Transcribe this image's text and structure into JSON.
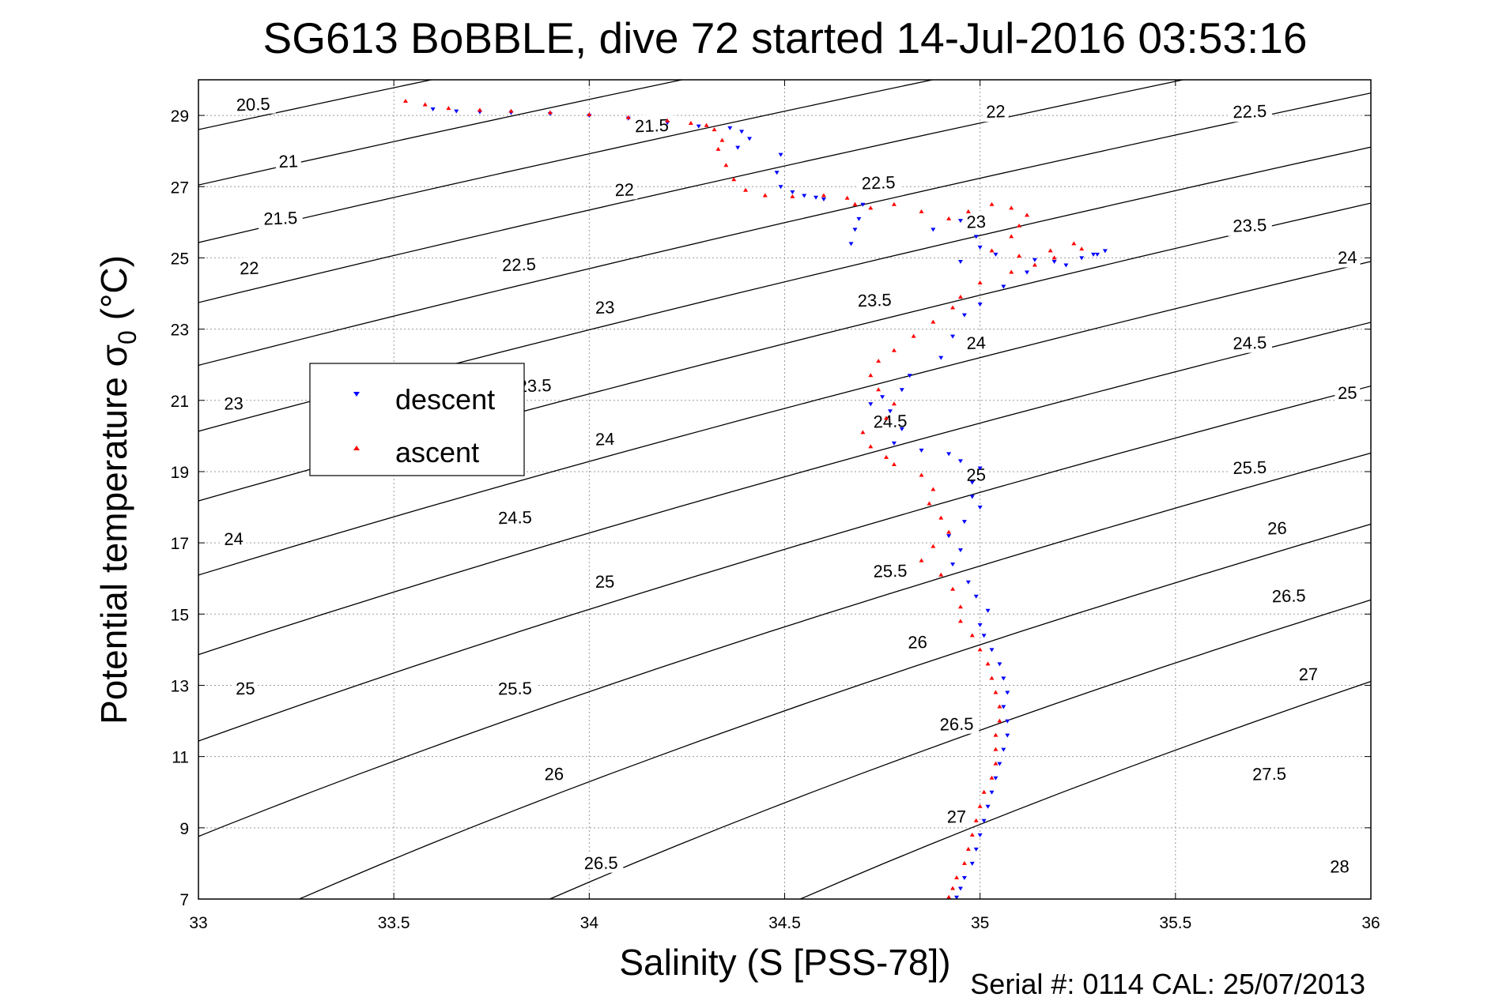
{
  "chart_data": {
    "type": "scatter",
    "title": "SG613 BoBBLE, dive 72 started 14-Jul-2016 03:53:16",
    "xlabel": "Salinity (S [PSS-78])",
    "ylabel": "Potential temperature σ",
    "ylabel_subscript": "0",
    "ylabel_units": " (°C)",
    "footer": "Serial #: 0114  CAL: 25/07/2013",
    "xlim": [
      33,
      36
    ],
    "ylim": [
      7,
      30
    ],
    "x_ticks": [
      33,
      33.5,
      34,
      34.5,
      35,
      35.5,
      36
    ],
    "x_tick_labels": [
      "33",
      "33.5",
      "34",
      "34.5",
      "35",
      "35.5",
      "36"
    ],
    "y_ticks": [
      7,
      9,
      11,
      13,
      15,
      17,
      19,
      21,
      23,
      25,
      27,
      29
    ],
    "y_tick_labels": [
      "7",
      "9",
      "11",
      "13",
      "15",
      "17",
      "19",
      "21",
      "23",
      "25",
      "27",
      "29"
    ],
    "grid": true,
    "legend": {
      "placement": "left-middle",
      "entries": [
        {
          "label": "descent",
          "color": "#0000ff",
          "marker": "triangle-down"
        },
        {
          "label": "ascent",
          "color": "#ff0000",
          "marker": "triangle-up"
        }
      ]
    },
    "density_contours": {
      "levels": [
        20.5,
        21,
        21.5,
        22,
        22.5,
        23,
        23.5,
        24,
        24.5,
        25,
        25.5,
        26,
        26.5,
        27,
        27.5,
        28
      ],
      "labels": [
        {
          "text": "20.5",
          "s": 33.14,
          "t": 29.3
        },
        {
          "text": "21",
          "s": 33.23,
          "t": 27.7
        },
        {
          "text": "21.5",
          "s": 33.21,
          "t": 26.1
        },
        {
          "text": "22",
          "s": 33.13,
          "t": 24.7
        },
        {
          "text": "23",
          "s": 33.09,
          "t": 20.9
        },
        {
          "text": "24",
          "s": 33.09,
          "t": 17.1
        },
        {
          "text": "25",
          "s": 33.12,
          "t": 12.9
        },
        {
          "text": "21.5",
          "s": 34.16,
          "t": 28.7
        },
        {
          "text": "22",
          "s": 34.09,
          "t": 26.9
        },
        {
          "text": "22.5",
          "s": 33.82,
          "t": 24.8
        },
        {
          "text": "23",
          "s": 34.04,
          "t": 23.6
        },
        {
          "text": "23.5",
          "s": 33.86,
          "t": 21.4
        },
        {
          "text": "24",
          "s": 34.04,
          "t": 19.9
        },
        {
          "text": "24.5",
          "s": 33.81,
          "t": 17.7
        },
        {
          "text": "25",
          "s": 34.04,
          "t": 15.9
        },
        {
          "text": "25.5",
          "s": 33.81,
          "t": 12.9
        },
        {
          "text": "26",
          "s": 33.91,
          "t": 10.5
        },
        {
          "text": "26.5",
          "s": 34.03,
          "t": 8.0
        },
        {
          "text": "22.5",
          "s": 34.74,
          "t": 27.1
        },
        {
          "text": "23",
          "s": 34.99,
          "t": 26.0
        },
        {
          "text": "23.5",
          "s": 34.73,
          "t": 23.8
        },
        {
          "text": "24",
          "s": 34.99,
          "t": 22.6
        },
        {
          "text": "24.5",
          "s": 34.77,
          "t": 20.4
        },
        {
          "text": "25",
          "s": 34.99,
          "t": 18.9
        },
        {
          "text": "25.5",
          "s": 34.77,
          "t": 16.2
        },
        {
          "text": "26",
          "s": 34.84,
          "t": 14.2
        },
        {
          "text": "26.5",
          "s": 34.94,
          "t": 11.9
        },
        {
          "text": "27",
          "s": 34.94,
          "t": 9.3
        },
        {
          "text": "22",
          "s": 35.04,
          "t": 29.1
        },
        {
          "text": "22.5",
          "s": 35.69,
          "t": 29.1
        },
        {
          "text": "23.5",
          "s": 35.69,
          "t": 25.9
        },
        {
          "text": "24",
          "s": 35.94,
          "t": 25.0
        },
        {
          "text": "24.5",
          "s": 35.69,
          "t": 22.6
        },
        {
          "text": "25",
          "s": 35.94,
          "t": 21.2
        },
        {
          "text": "25.5",
          "s": 35.69,
          "t": 19.1
        },
        {
          "text": "26",
          "s": 35.76,
          "t": 17.4
        },
        {
          "text": "26.5",
          "s": 35.79,
          "t": 15.5
        },
        {
          "text": "27",
          "s": 35.84,
          "t": 13.3
        },
        {
          "text": "27.5",
          "s": 35.74,
          "t": 10.5
        },
        {
          "text": "28",
          "s": 35.92,
          "t": 7.9
        }
      ]
    },
    "series": [
      {
        "name": "descent",
        "color": "#0000ff",
        "marker": "triangle-down",
        "points": [
          [
            33.6,
            29.18
          ],
          [
            33.66,
            29.12
          ],
          [
            33.72,
            29.1
          ],
          [
            33.8,
            29.08
          ],
          [
            33.9,
            29.05
          ],
          [
            34.0,
            29.0
          ],
          [
            34.1,
            28.92
          ],
          [
            34.2,
            28.8
          ],
          [
            34.28,
            28.7
          ],
          [
            34.36,
            28.65
          ],
          [
            34.39,
            28.55
          ],
          [
            34.41,
            28.35
          ],
          [
            34.38,
            28.1
          ],
          [
            34.49,
            27.9
          ],
          [
            34.48,
            27.4
          ],
          [
            34.49,
            27.0
          ],
          [
            34.52,
            26.85
          ],
          [
            34.55,
            26.75
          ],
          [
            34.58,
            26.7
          ],
          [
            34.6,
            26.65
          ],
          [
            34.7,
            26.5
          ],
          [
            34.69,
            26.1
          ],
          [
            34.68,
            25.8
          ],
          [
            34.67,
            25.4
          ],
          [
            34.88,
            25.8
          ],
          [
            34.95,
            26.05
          ],
          [
            34.99,
            25.6
          ],
          [
            35.0,
            25.3
          ],
          [
            35.04,
            25.1
          ],
          [
            34.95,
            24.9
          ],
          [
            35.14,
            24.95
          ],
          [
            35.22,
            24.8
          ],
          [
            35.26,
            25.0
          ],
          [
            35.3,
            25.1
          ],
          [
            35.32,
            25.2
          ],
          [
            35.29,
            25.1
          ],
          [
            35.19,
            24.9
          ],
          [
            35.12,
            24.6
          ],
          [
            35.06,
            24.2
          ],
          [
            35.0,
            23.7
          ],
          [
            34.96,
            23.4
          ],
          [
            34.93,
            22.8
          ],
          [
            34.9,
            22.2
          ],
          [
            34.82,
            21.7
          ],
          [
            34.8,
            21.3
          ],
          [
            34.75,
            21.1
          ],
          [
            34.72,
            20.9
          ],
          [
            34.77,
            20.7
          ],
          [
            34.8,
            20.2
          ],
          [
            34.78,
            19.8
          ],
          [
            34.85,
            19.6
          ],
          [
            34.92,
            19.5
          ],
          [
            34.95,
            19.3
          ],
          [
            35.0,
            19.1
          ],
          [
            34.98,
            18.7
          ],
          [
            34.98,
            18.3
          ],
          [
            35.0,
            18.0
          ],
          [
            34.96,
            17.6
          ],
          [
            34.92,
            17.2
          ],
          [
            34.95,
            16.8
          ],
          [
            34.93,
            16.4
          ],
          [
            34.97,
            15.9
          ],
          [
            34.99,
            15.5
          ],
          [
            35.02,
            15.1
          ],
          [
            35.0,
            14.7
          ],
          [
            35.01,
            14.4
          ],
          [
            35.03,
            14.0
          ],
          [
            35.05,
            13.6
          ],
          [
            35.06,
            13.2
          ],
          [
            35.07,
            12.8
          ],
          [
            35.06,
            12.4
          ],
          [
            35.07,
            12.0
          ],
          [
            35.07,
            11.6
          ],
          [
            35.06,
            11.2
          ],
          [
            35.05,
            10.8
          ],
          [
            35.04,
            10.4
          ],
          [
            35.03,
            10.0
          ],
          [
            35.02,
            9.6
          ],
          [
            35.01,
            9.2
          ],
          [
            35.0,
            8.8
          ],
          [
            34.99,
            8.4
          ],
          [
            34.98,
            8.0
          ],
          [
            34.96,
            7.6
          ],
          [
            34.95,
            7.3
          ],
          [
            34.94,
            7.05
          ]
        ]
      },
      {
        "name": "ascent",
        "color": "#ff0000",
        "marker": "triangle-up",
        "points": [
          [
            33.53,
            29.4
          ],
          [
            33.58,
            29.3
          ],
          [
            33.64,
            29.2
          ],
          [
            33.72,
            29.15
          ],
          [
            33.8,
            29.12
          ],
          [
            33.9,
            29.08
          ],
          [
            34.0,
            29.02
          ],
          [
            34.1,
            28.94
          ],
          [
            34.2,
            28.85
          ],
          [
            34.26,
            28.78
          ],
          [
            34.3,
            28.72
          ],
          [
            34.32,
            28.6
          ],
          [
            34.34,
            28.3
          ],
          [
            34.33,
            28.05
          ],
          [
            34.35,
            27.6
          ],
          [
            34.37,
            27.2
          ],
          [
            34.4,
            26.9
          ],
          [
            34.45,
            26.75
          ],
          [
            34.52,
            26.72
          ],
          [
            34.6,
            26.75
          ],
          [
            34.66,
            26.68
          ],
          [
            34.68,
            26.5
          ],
          [
            34.72,
            26.4
          ],
          [
            34.78,
            26.5
          ],
          [
            34.85,
            26.3
          ],
          [
            34.92,
            26.1
          ],
          [
            34.97,
            26.3
          ],
          [
            35.03,
            26.5
          ],
          [
            35.08,
            26.4
          ],
          [
            35.12,
            26.2
          ],
          [
            35.1,
            25.9
          ],
          [
            35.08,
            25.6
          ],
          [
            35.03,
            25.2
          ],
          [
            35.1,
            25.05
          ],
          [
            35.18,
            25.2
          ],
          [
            35.24,
            25.4
          ],
          [
            35.26,
            25.25
          ],
          [
            35.19,
            25.0
          ],
          [
            35.14,
            24.8
          ],
          [
            35.08,
            24.6
          ],
          [
            35.0,
            24.3
          ],
          [
            34.95,
            23.9
          ],
          [
            34.93,
            23.6
          ],
          [
            34.88,
            23.2
          ],
          [
            34.83,
            22.8
          ],
          [
            34.78,
            22.4
          ],
          [
            34.74,
            22.1
          ],
          [
            34.72,
            21.7
          ],
          [
            34.74,
            21.3
          ],
          [
            34.78,
            20.9
          ],
          [
            34.76,
            20.5
          ],
          [
            34.7,
            20.1
          ],
          [
            34.72,
            19.7
          ],
          [
            34.76,
            19.4
          ],
          [
            34.78,
            19.2
          ],
          [
            34.85,
            18.9
          ],
          [
            34.88,
            18.5
          ],
          [
            34.87,
            18.1
          ],
          [
            34.9,
            17.7
          ],
          [
            34.92,
            17.3
          ],
          [
            34.88,
            16.9
          ],
          [
            34.85,
            16.5
          ],
          [
            34.9,
            16.1
          ],
          [
            34.93,
            15.7
          ],
          [
            34.95,
            15.2
          ],
          [
            34.95,
            14.8
          ],
          [
            34.98,
            14.4
          ],
          [
            35.0,
            14.0
          ],
          [
            35.02,
            13.6
          ],
          [
            35.03,
            13.2
          ],
          [
            35.04,
            12.8
          ],
          [
            35.05,
            12.4
          ],
          [
            35.05,
            12.0
          ],
          [
            35.04,
            11.6
          ],
          [
            35.04,
            11.2
          ],
          [
            35.04,
            10.8
          ],
          [
            35.03,
            10.4
          ],
          [
            35.01,
            10.0
          ],
          [
            35.0,
            9.6
          ],
          [
            34.99,
            9.2
          ],
          [
            34.98,
            8.8
          ],
          [
            34.97,
            8.4
          ],
          [
            34.96,
            8.0
          ],
          [
            34.94,
            7.6
          ],
          [
            34.93,
            7.3
          ],
          [
            34.92,
            7.05
          ]
        ]
      }
    ]
  }
}
